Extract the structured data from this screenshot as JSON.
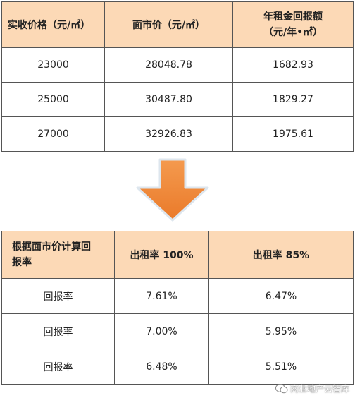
{
  "table1": {
    "headers": [
      "实收价格（元/㎡）",
      "面市价（元/㎡）",
      "年租金回报额\n（元/年•㎡）"
    ],
    "rows": [
      [
        "23000",
        "28048.78",
        "1682.93"
      ],
      [
        "25000",
        "30487.80",
        "1829.27"
      ],
      [
        "27000",
        "32926.83",
        "1975.61"
      ]
    ]
  },
  "arrow": {
    "icon": "down-arrow-icon",
    "color": "#f08a3c"
  },
  "table2": {
    "headers": [
      "根据面市价计算回\n报率",
      "出租率 100%",
      "出租率 85%"
    ],
    "rows": [
      [
        "回报率",
        "7.61%",
        "6.47%"
      ],
      [
        "回报率",
        "7.00%",
        "5.95%"
      ],
      [
        "回报率",
        "6.48%",
        "5.51%"
      ]
    ]
  },
  "watermark": {
    "text": "商业地产云智库",
    "icon": "wechat-icon"
  },
  "colors": {
    "header_bg": "#fcd9b6",
    "border": "#555555",
    "arrow": "#f08a3c"
  }
}
